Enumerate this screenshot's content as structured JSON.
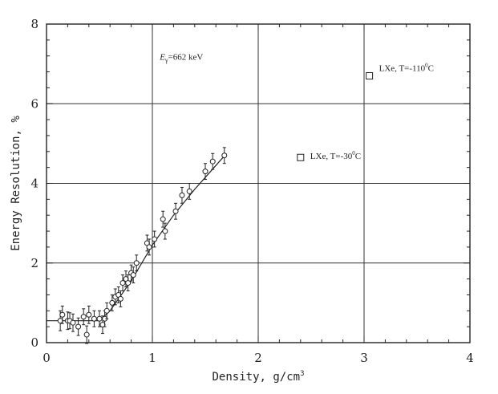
{
  "chart_data": {
    "type": "scatter",
    "xlabel": "Density, g/cm",
    "xlabel_sup": "3",
    "ylabel": "Energy Resolution, %",
    "xlim": [
      0,
      4
    ],
    "ylim": [
      0,
      8
    ],
    "xticks": [
      0,
      1,
      2,
      3,
      4
    ],
    "yticks": [
      0,
      2,
      4,
      6,
      8
    ],
    "grid": true,
    "annotations": {
      "energy": {
        "prefix": "E",
        "sub": "γ",
        "suffix": "=662 keV"
      },
      "lxe_cold": {
        "text": "LXe, T=-110",
        "sup": "0",
        "unit": "C",
        "x": 3.05,
        "y": 6.7
      },
      "lxe_warm": {
        "text": "LXe, T=-30",
        "sup": "0",
        "unit": "C",
        "x": 2.4,
        "y": 4.65
      }
    },
    "series": [
      {
        "marker": "circle",
        "points": [
          {
            "x": 0.13,
            "y": 0.55,
            "err": 0.25
          },
          {
            "x": 0.15,
            "y": 0.7,
            "err": 0.22
          },
          {
            "x": 0.2,
            "y": 0.55,
            "err": 0.22
          },
          {
            "x": 0.22,
            "y": 0.55,
            "err": 0.2
          },
          {
            "x": 0.25,
            "y": 0.5,
            "err": 0.22
          },
          {
            "x": 0.3,
            "y": 0.4,
            "err": 0.22
          },
          {
            "x": 0.35,
            "y": 0.65,
            "err": 0.2
          },
          {
            "x": 0.38,
            "y": 0.2,
            "err": 0.22
          },
          {
            "x": 0.4,
            "y": 0.7,
            "err": 0.22
          },
          {
            "x": 0.45,
            "y": 0.6,
            "err": 0.2
          },
          {
            "x": 0.5,
            "y": 0.6,
            "err": 0.2
          },
          {
            "x": 0.53,
            "y": 0.45,
            "err": 0.22
          },
          {
            "x": 0.55,
            "y": 0.6,
            "err": 0.2
          },
          {
            "x": 0.57,
            "y": 0.8,
            "err": 0.2
          },
          {
            "x": 0.62,
            "y": 1.0,
            "err": 0.2
          },
          {
            "x": 0.65,
            "y": 1.15,
            "err": 0.2
          },
          {
            "x": 0.68,
            "y": 1.2,
            "err": 0.2
          },
          {
            "x": 0.7,
            "y": 1.1,
            "err": 0.2
          },
          {
            "x": 0.72,
            "y": 1.5,
            "err": 0.2
          },
          {
            "x": 0.75,
            "y": 1.6,
            "err": 0.2
          },
          {
            "x": 0.77,
            "y": 1.5,
            "err": 0.2
          },
          {
            "x": 0.8,
            "y": 1.75,
            "err": 0.2
          },
          {
            "x": 0.82,
            "y": 1.7,
            "err": 0.2
          },
          {
            "x": 0.85,
            "y": 2.0,
            "err": 0.2
          },
          {
            "x": 0.95,
            "y": 2.5,
            "err": 0.2
          },
          {
            "x": 0.97,
            "y": 2.4,
            "err": 0.2
          },
          {
            "x": 1.02,
            "y": 2.6,
            "err": 0.2
          },
          {
            "x": 1.1,
            "y": 3.1,
            "err": 0.2
          },
          {
            "x": 1.12,
            "y": 2.8,
            "err": 0.2
          },
          {
            "x": 1.22,
            "y": 3.3,
            "err": 0.2
          },
          {
            "x": 1.28,
            "y": 3.7,
            "err": 0.2
          },
          {
            "x": 1.35,
            "y": 3.8,
            "err": 0.2
          },
          {
            "x": 1.5,
            "y": 4.3,
            "err": 0.2
          },
          {
            "x": 1.57,
            "y": 4.55,
            "err": 0.2
          },
          {
            "x": 1.68,
            "y": 4.7,
            "err": 0.2
          }
        ]
      }
    ],
    "fit_line": [
      {
        "x": 0,
        "y": 0.55
      },
      {
        "x": 0.5,
        "y": 0.55
      },
      {
        "x": 0.6,
        "y": 0.8
      },
      {
        "x": 0.8,
        "y": 1.55
      },
      {
        "x": 1.0,
        "y": 2.45
      },
      {
        "x": 1.2,
        "y": 3.2
      },
      {
        "x": 1.4,
        "y": 3.85
      },
      {
        "x": 1.6,
        "y": 4.45
      },
      {
        "x": 1.7,
        "y": 4.75
      }
    ],
    "square_points": [
      {
        "x": 3.05,
        "y": 6.7
      },
      {
        "x": 2.4,
        "y": 4.65
      }
    ]
  }
}
